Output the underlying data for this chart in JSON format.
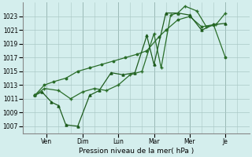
{
  "xlabel": "Pression niveau de la mer( hPa )",
  "bg_color": "#d4eeed",
  "grid_color": "#aac8c5",
  "line_color1": "#1e5c1e",
  "line_color2": "#2a6e2a",
  "line_color3": "#2a6e2a",
  "ylim": [
    1006.0,
    1025.0
  ],
  "ytick_min": 1007,
  "ytick_max": 1023,
  "ytick_step": 2,
  "x_day_positions": [
    0.5,
    2.0,
    3.5,
    5.0,
    6.5,
    8.0
  ],
  "x_day_labels": [
    "Ven",
    "Dim",
    "Lun",
    "Mar",
    "Mer",
    "Je"
  ],
  "xlim": [
    -0.5,
    9.0
  ],
  "s1_x": [
    0.0,
    0.3,
    0.7,
    1.0,
    1.3,
    1.8,
    2.3,
    2.7,
    3.2,
    3.7,
    4.2,
    4.7,
    5.0,
    5.5,
    6.0,
    6.5,
    7.0,
    7.5,
    8.0
  ],
  "s1_y": [
    1011.5,
    1012.0,
    1010.5,
    1010.0,
    1007.2,
    1007.0,
    1011.5,
    1012.2,
    1014.8,
    1014.5,
    1014.8,
    1020.2,
    1016.0,
    1023.5,
    1023.5,
    1023.2,
    1021.0,
    1021.8,
    1022.0
  ],
  "s2_x": [
    0.0,
    0.4,
    0.8,
    1.3,
    1.8,
    2.3,
    2.8,
    3.3,
    3.8,
    4.3,
    4.7,
    5.2,
    5.5,
    6.0,
    6.5,
    7.0,
    7.5,
    8.0
  ],
  "s2_y": [
    1011.5,
    1013.0,
    1013.5,
    1014.0,
    1015.0,
    1015.5,
    1016.0,
    1016.5,
    1017.0,
    1017.5,
    1018.0,
    1020.0,
    1021.0,
    1022.5,
    1023.0,
    1021.5,
    1021.8,
    1017.0
  ],
  "s3_x": [
    0.0,
    0.4,
    1.0,
    1.5,
    2.0,
    2.5,
    3.0,
    3.5,
    4.0,
    4.5,
    5.0,
    5.3,
    5.7,
    6.0,
    6.3,
    6.8,
    7.2,
    7.6,
    8.0
  ],
  "s3_y": [
    1011.5,
    1012.5,
    1012.2,
    1011.0,
    1012.0,
    1012.5,
    1012.2,
    1013.0,
    1014.5,
    1015.0,
    1020.5,
    1015.5,
    1023.2,
    1023.5,
    1024.5,
    1023.8,
    1021.5,
    1021.8,
    1023.5
  ]
}
